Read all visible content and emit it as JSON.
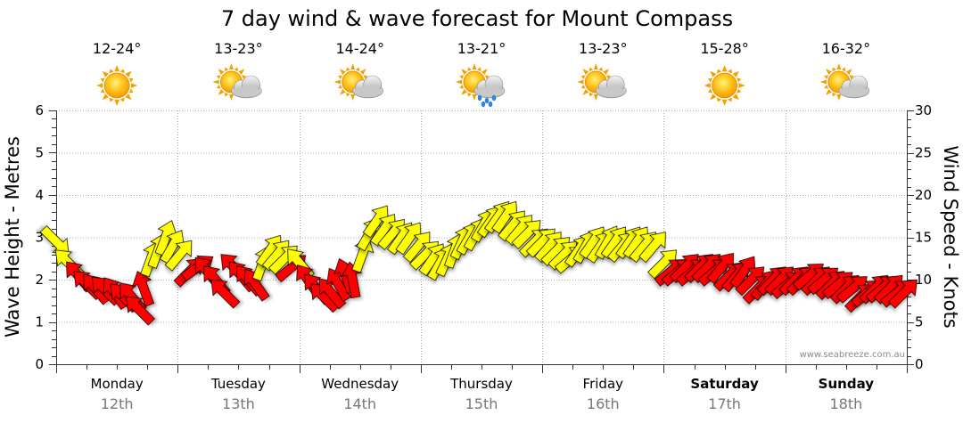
{
  "chart_data": {
    "type": "line",
    "title": "7 day wind & wave forecast for Mount Compass",
    "ylabel_left": "Wave Height - Metres",
    "ylabel_right": "Wind Speed - Knots",
    "ylim_left": [
      0,
      6
    ],
    "ylim_right": [
      0,
      30
    ],
    "yticks_left": [
      "0",
      "1",
      "2",
      "3",
      "4",
      "5",
      "6"
    ],
    "yticks_right": [
      "0",
      "5",
      "10",
      "15",
      "20",
      "25",
      "30"
    ],
    "grid": true,
    "credit": "www.seabreeze.com.au",
    "colors": {
      "light": "#ffff00",
      "strong": "#ff0000",
      "outline": "#000000",
      "grid": "#999999"
    },
    "wind_threshold_knots": 12,
    "days": [
      {
        "name": "Monday",
        "date": "12th",
        "temp": "12-24°",
        "icon": "sunny-icon",
        "bold": false
      },
      {
        "name": "Tuesday",
        "date": "13th",
        "temp": "13-23°",
        "icon": "partly-cloudy-icon",
        "bold": false
      },
      {
        "name": "Wednesday",
        "date": "14th",
        "temp": "14-24°",
        "icon": "partly-cloudy-icon",
        "bold": false
      },
      {
        "name": "Thursday",
        "date": "15th",
        "temp": "13-21°",
        "icon": "showers-icon",
        "bold": false
      },
      {
        "name": "Friday",
        "date": "16th",
        "temp": "13-23°",
        "icon": "partly-cloudy-icon",
        "bold": false
      },
      {
        "name": "Saturday",
        "date": "17th",
        "temp": "15-28°",
        "icon": "sunny-icon",
        "bold": true
      },
      {
        "name": "Sunday",
        "date": "18th",
        "temp": "16-32°",
        "icon": "partly-cloudy-icon",
        "bold": true
      }
    ],
    "wind": [
      {
        "t": 0.0,
        "kn": 14.5,
        "dir": 315
      },
      {
        "t": 0.1,
        "kn": 12.0,
        "dir": 135
      },
      {
        "t": 0.18,
        "kn": 10.5,
        "dir": 140
      },
      {
        "t": 0.25,
        "kn": 9.5,
        "dir": 135
      },
      {
        "t": 0.32,
        "kn": 9.0,
        "dir": 140
      },
      {
        "t": 0.4,
        "kn": 8.8,
        "dir": 135
      },
      {
        "t": 0.48,
        "kn": 8.5,
        "dir": 145
      },
      {
        "t": 0.55,
        "kn": 8.0,
        "dir": 135
      },
      {
        "t": 0.62,
        "kn": 8.0,
        "dir": 140
      },
      {
        "t": 0.68,
        "kn": 6.5,
        "dir": 135
      },
      {
        "t": 0.72,
        "kn": 9.0,
        "dir": 160
      },
      {
        "t": 0.78,
        "kn": 12.5,
        "dir": 200
      },
      {
        "t": 0.84,
        "kn": 13.5,
        "dir": 200
      },
      {
        "t": 0.9,
        "kn": 15.0,
        "dir": 200
      },
      {
        "t": 0.96,
        "kn": 14.0,
        "dir": 210
      },
      {
        "t": 1.02,
        "kn": 13.0,
        "dir": 220
      },
      {
        "t": 1.1,
        "kn": 11.0,
        "dir": 225
      },
      {
        "t": 1.17,
        "kn": 11.5,
        "dir": 235
      },
      {
        "t": 1.24,
        "kn": 11.0,
        "dir": 140
      },
      {
        "t": 1.31,
        "kn": 10.0,
        "dir": 140
      },
      {
        "t": 1.38,
        "kn": 8.5,
        "dir": 135
      },
      {
        "t": 1.46,
        "kn": 11.5,
        "dir": 135
      },
      {
        "t": 1.52,
        "kn": 10.5,
        "dir": 140
      },
      {
        "t": 1.58,
        "kn": 10.0,
        "dir": 140
      },
      {
        "t": 1.64,
        "kn": 9.5,
        "dir": 145
      },
      {
        "t": 1.7,
        "kn": 12.0,
        "dir": 200
      },
      {
        "t": 1.76,
        "kn": 13.5,
        "dir": 215
      },
      {
        "t": 1.82,
        "kn": 13.0,
        "dir": 220
      },
      {
        "t": 1.88,
        "kn": 12.5,
        "dir": 225
      },
      {
        "t": 1.94,
        "kn": 11.5,
        "dir": 230
      },
      {
        "t": 2.0,
        "kn": 12.0,
        "dir": 140
      },
      {
        "t": 2.07,
        "kn": 10.0,
        "dir": 145
      },
      {
        "t": 2.14,
        "kn": 9.0,
        "dir": 140
      },
      {
        "t": 2.2,
        "kn": 8.0,
        "dir": 135
      },
      {
        "t": 2.26,
        "kn": 8.5,
        "dir": 140
      },
      {
        "t": 2.32,
        "kn": 9.5,
        "dir": 150
      },
      {
        "t": 2.38,
        "kn": 10.5,
        "dir": 160
      },
      {
        "t": 2.44,
        "kn": 10.0,
        "dir": 170
      },
      {
        "t": 2.52,
        "kn": 13.0,
        "dir": 200
      },
      {
        "t": 2.58,
        "kn": 15.5,
        "dir": 210
      },
      {
        "t": 2.64,
        "kn": 17.0,
        "dir": 215
      },
      {
        "t": 2.7,
        "kn": 16.0,
        "dir": 215
      },
      {
        "t": 2.77,
        "kn": 15.5,
        "dir": 220
      },
      {
        "t": 2.84,
        "kn": 15.0,
        "dir": 215
      },
      {
        "t": 2.91,
        "kn": 15.0,
        "dir": 215
      },
      {
        "t": 2.98,
        "kn": 14.0,
        "dir": 220
      },
      {
        "t": 3.04,
        "kn": 13.0,
        "dir": 225
      },
      {
        "t": 3.1,
        "kn": 12.5,
        "dir": 215
      },
      {
        "t": 3.16,
        "kn": 12.0,
        "dir": 210
      },
      {
        "t": 3.22,
        "kn": 12.5,
        "dir": 205
      },
      {
        "t": 3.28,
        "kn": 13.5,
        "dir": 200
      },
      {
        "t": 3.34,
        "kn": 14.5,
        "dir": 205
      },
      {
        "t": 3.4,
        "kn": 15.0,
        "dir": 210
      },
      {
        "t": 3.46,
        "kn": 15.5,
        "dir": 210
      },
      {
        "t": 3.52,
        "kn": 16.5,
        "dir": 210
      },
      {
        "t": 3.58,
        "kn": 17.0,
        "dir": 215
      },
      {
        "t": 3.64,
        "kn": 17.5,
        "dir": 215
      },
      {
        "t": 3.7,
        "kn": 17.5,
        "dir": 215
      },
      {
        "t": 3.76,
        "kn": 16.5,
        "dir": 220
      },
      {
        "t": 3.82,
        "kn": 16.0,
        "dir": 220
      },
      {
        "t": 3.88,
        "kn": 15.5,
        "dir": 225
      },
      {
        "t": 3.94,
        "kn": 14.5,
        "dir": 225
      },
      {
        "t": 4.0,
        "kn": 14.5,
        "dir": 225
      },
      {
        "t": 4.06,
        "kn": 14.0,
        "dir": 220
      },
      {
        "t": 4.12,
        "kn": 13.5,
        "dir": 225
      },
      {
        "t": 4.18,
        "kn": 13.0,
        "dir": 225
      },
      {
        "t": 4.24,
        "kn": 12.5,
        "dir": 230
      },
      {
        "t": 4.3,
        "kn": 13.5,
        "dir": 215
      },
      {
        "t": 4.36,
        "kn": 14.0,
        "dir": 210
      },
      {
        "t": 4.42,
        "kn": 14.5,
        "dir": 215
      },
      {
        "t": 4.48,
        "kn": 14.0,
        "dir": 215
      },
      {
        "t": 4.54,
        "kn": 14.5,
        "dir": 210
      },
      {
        "t": 4.6,
        "kn": 14.5,
        "dir": 215
      },
      {
        "t": 4.66,
        "kn": 14.0,
        "dir": 220
      },
      {
        "t": 4.72,
        "kn": 14.5,
        "dir": 215
      },
      {
        "t": 4.78,
        "kn": 14.5,
        "dir": 215
      },
      {
        "t": 4.84,
        "kn": 14.0,
        "dir": 220
      },
      {
        "t": 4.92,
        "kn": 14.0,
        "dir": 220
      },
      {
        "t": 5.0,
        "kn": 12.0,
        "dir": 225
      },
      {
        "t": 5.06,
        "kn": 11.0,
        "dir": 230
      },
      {
        "t": 5.12,
        "kn": 11.0,
        "dir": 230
      },
      {
        "t": 5.18,
        "kn": 11.5,
        "dir": 225
      },
      {
        "t": 5.24,
        "kn": 11.0,
        "dir": 230
      },
      {
        "t": 5.3,
        "kn": 11.5,
        "dir": 225
      },
      {
        "t": 5.36,
        "kn": 11.5,
        "dir": 225
      },
      {
        "t": 5.42,
        "kn": 11.0,
        "dir": 230
      },
      {
        "t": 5.48,
        "kn": 11.5,
        "dir": 220
      },
      {
        "t": 5.54,
        "kn": 10.5,
        "dir": 225
      },
      {
        "t": 5.6,
        "kn": 10.5,
        "dir": 220
      },
      {
        "t": 5.66,
        "kn": 11.0,
        "dir": 215
      },
      {
        "t": 5.72,
        "kn": 10.0,
        "dir": 225
      },
      {
        "t": 5.78,
        "kn": 9.0,
        "dir": 225
      },
      {
        "t": 5.84,
        "kn": 9.5,
        "dir": 220
      },
      {
        "t": 5.9,
        "kn": 10.0,
        "dir": 225
      },
      {
        "t": 5.96,
        "kn": 10.0,
        "dir": 225
      },
      {
        "t": 6.02,
        "kn": 9.5,
        "dir": 230
      },
      {
        "t": 6.08,
        "kn": 10.0,
        "dir": 225
      },
      {
        "t": 6.14,
        "kn": 10.0,
        "dir": 225
      },
      {
        "t": 6.2,
        "kn": 10.5,
        "dir": 230
      },
      {
        "t": 6.26,
        "kn": 10.0,
        "dir": 225
      },
      {
        "t": 6.32,
        "kn": 10.0,
        "dir": 230
      },
      {
        "t": 6.38,
        "kn": 9.5,
        "dir": 225
      },
      {
        "t": 6.44,
        "kn": 9.5,
        "dir": 230
      },
      {
        "t": 6.5,
        "kn": 9.0,
        "dir": 225
      },
      {
        "t": 6.56,
        "kn": 9.0,
        "dir": 230
      },
      {
        "t": 6.62,
        "kn": 8.0,
        "dir": 225
      },
      {
        "t": 6.68,
        "kn": 8.5,
        "dir": 230
      },
      {
        "t": 6.74,
        "kn": 9.0,
        "dir": 225
      },
      {
        "t": 6.8,
        "kn": 9.0,
        "dir": 230
      },
      {
        "t": 6.86,
        "kn": 9.0,
        "dir": 225
      },
      {
        "t": 6.92,
        "kn": 8.5,
        "dir": 230
      },
      {
        "t": 6.98,
        "kn": 8.5,
        "dir": 225
      }
    ]
  }
}
